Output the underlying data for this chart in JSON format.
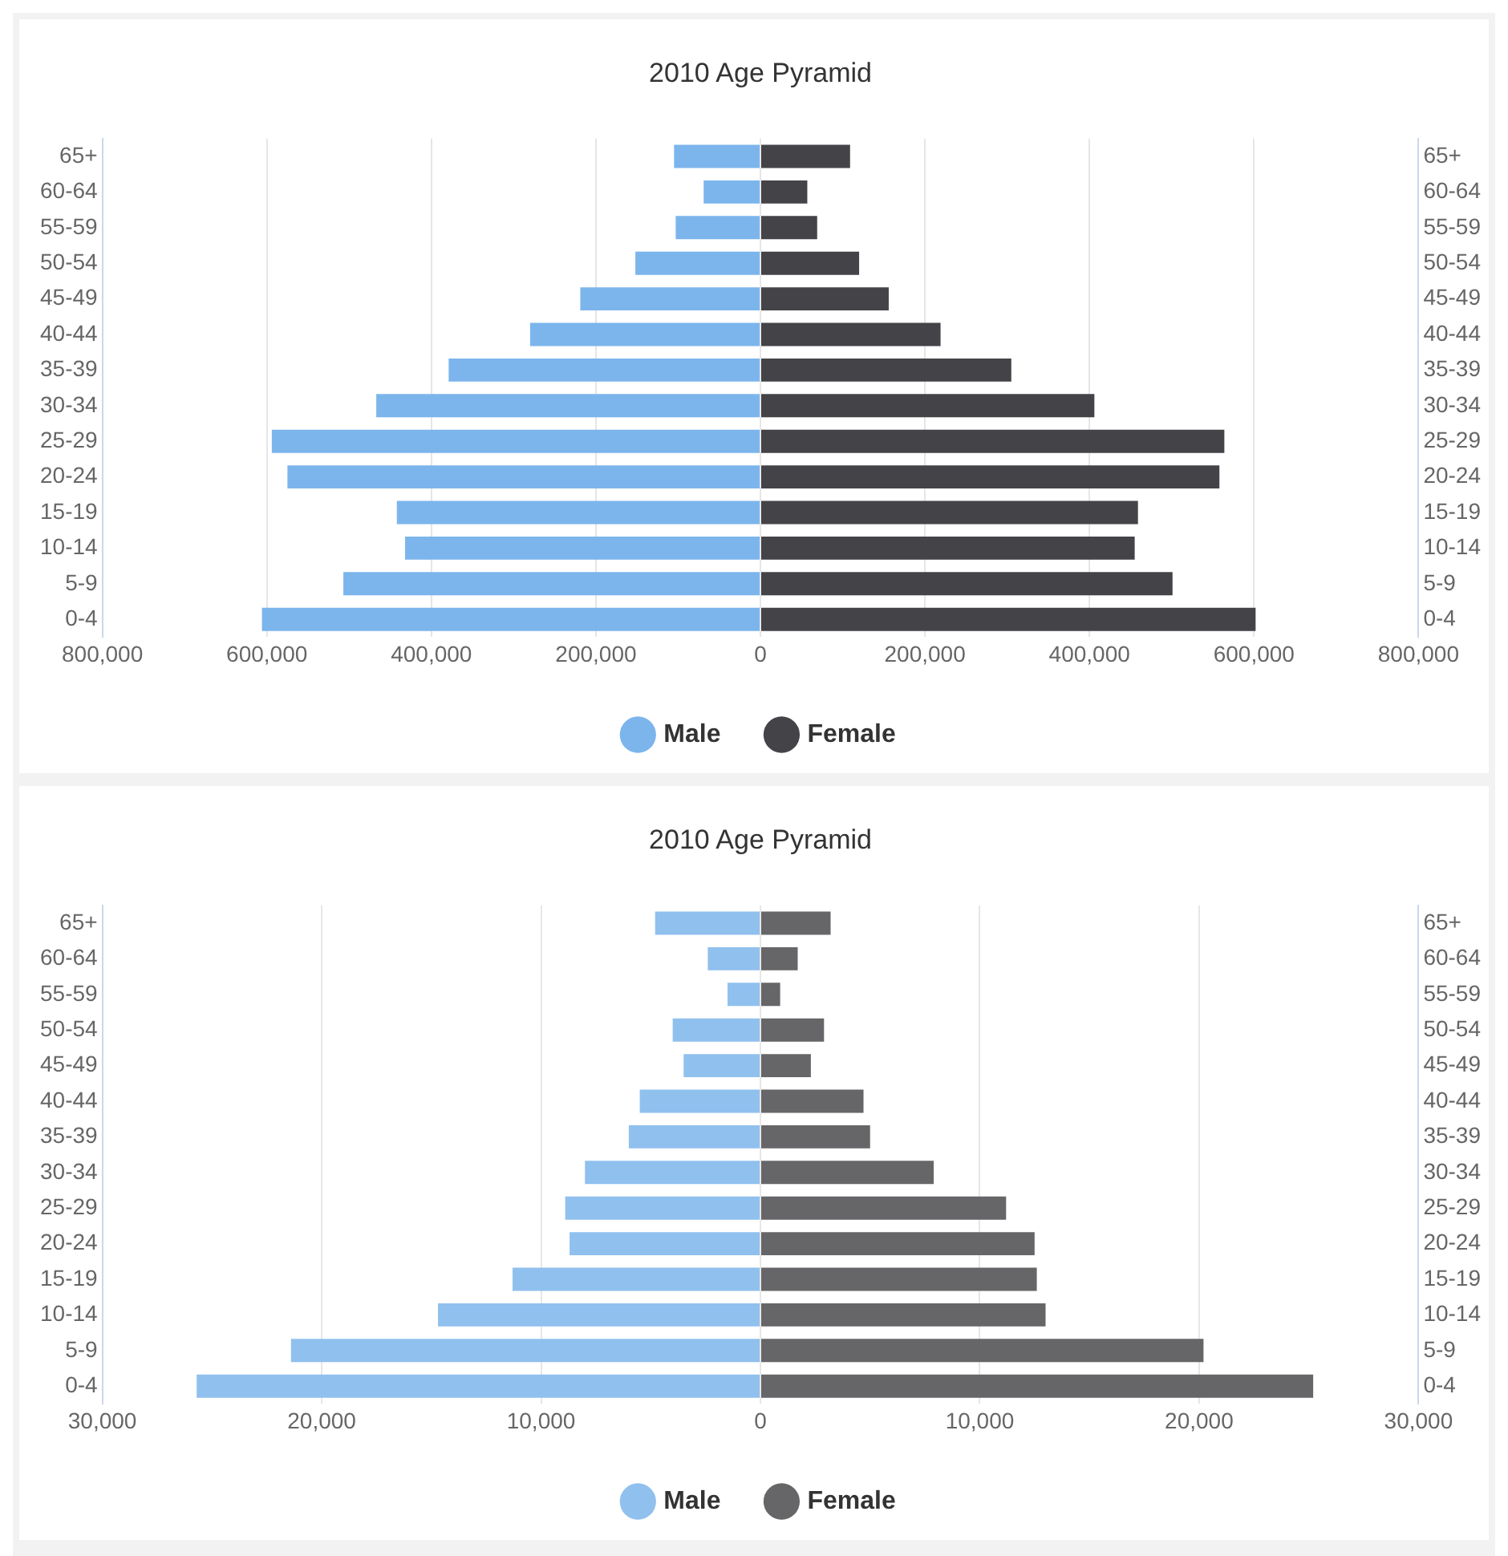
{
  "chart_data": [
    {
      "type": "bar",
      "title": "2010 Age Pyramid",
      "orientation": "horizontal",
      "stacked": true,
      "categories": [
        "65+",
        "60-64",
        "55-59",
        "50-54",
        "45-49",
        "40-44",
        "35-39",
        "30-34",
        "25-29",
        "20-24",
        "15-19",
        "10-14",
        "5-9",
        "0-4"
      ],
      "y2_categories": [
        "65+",
        "60-64",
        "55-59",
        "50-54",
        "45-49",
        "40-44",
        "35-39",
        "30-34",
        "25-29",
        "20-24",
        "15-19",
        "10-14",
        "5-9",
        "0-4"
      ],
      "series": [
        {
          "name": "Male",
          "color": "#7cb5ec",
          "values": [
            -105000,
            -69000,
            -103000,
            -152000,
            -219000,
            -280000,
            -379000,
            -467000,
            -594000,
            -575000,
            -442000,
            -432000,
            -507000,
            -606000
          ]
        },
        {
          "name": "Female",
          "color": "#434348",
          "values": [
            109000,
            57000,
            69000,
            120000,
            156000,
            219000,
            305000,
            406000,
            564000,
            558000,
            459000,
            455000,
            501000,
            602000
          ]
        }
      ],
      "xlim": [
        -800000,
        800000
      ],
      "xticks": [
        {
          "value": -800000,
          "label": "800,000"
        },
        {
          "value": -600000,
          "label": "600,000"
        },
        {
          "value": -400000,
          "label": "400,000"
        },
        {
          "value": -200000,
          "label": "200,000"
        },
        0,
        {
          "value": 200000,
          "label": "200,000"
        },
        {
          "value": 400000,
          "label": "400,000"
        },
        {
          "value": 600000,
          "label": "600,000"
        },
        {
          "value": 800000,
          "label": "800,000"
        }
      ],
      "grid": "x",
      "legend": "bottom",
      "marker": "circle"
    },
    {
      "type": "bar",
      "title": "2010 Age Pyramid",
      "orientation": "horizontal",
      "stacked": true,
      "categories": [
        "65+",
        "60-64",
        "55-59",
        "50-54",
        "45-49",
        "40-44",
        "35-39",
        "30-34",
        "25-29",
        "20-24",
        "15-19",
        "10-14",
        "5-9",
        "0-4"
      ],
      "y2_categories": [
        "65+",
        "60-64",
        "55-59",
        "50-54",
        "45-49",
        "40-44",
        "35-39",
        "30-34",
        "25-29",
        "20-24",
        "15-19",
        "10-14",
        "5-9",
        "0-4"
      ],
      "series": [
        {
          "name": "Male",
          "color": "#90c0ee",
          "values": [
            -4800,
            -2400,
            -1500,
            -4000,
            -3500,
            -5500,
            -6000,
            -8000,
            -8900,
            -8700,
            -11300,
            -14700,
            -21400,
            -25700
          ]
        },
        {
          "name": "Female",
          "color": "#666668",
          "values": [
            3200,
            1700,
            900,
            2900,
            2300,
            4700,
            5000,
            7900,
            11200,
            12500,
            12600,
            13000,
            20200,
            25200
          ]
        }
      ],
      "xlim": [
        -30000,
        30000
      ],
      "xticks": [
        {
          "value": -30000,
          "label": "30,000"
        },
        {
          "value": -20000,
          "label": "20,000"
        },
        {
          "value": -10000,
          "label": "10,000"
        },
        0,
        {
          "value": 10000,
          "label": "10,000"
        },
        {
          "value": 20000,
          "label": "20,000"
        },
        {
          "value": 30000,
          "label": "30,000"
        }
      ],
      "grid": "x",
      "legend": "bottom",
      "marker": "circle"
    }
  ]
}
